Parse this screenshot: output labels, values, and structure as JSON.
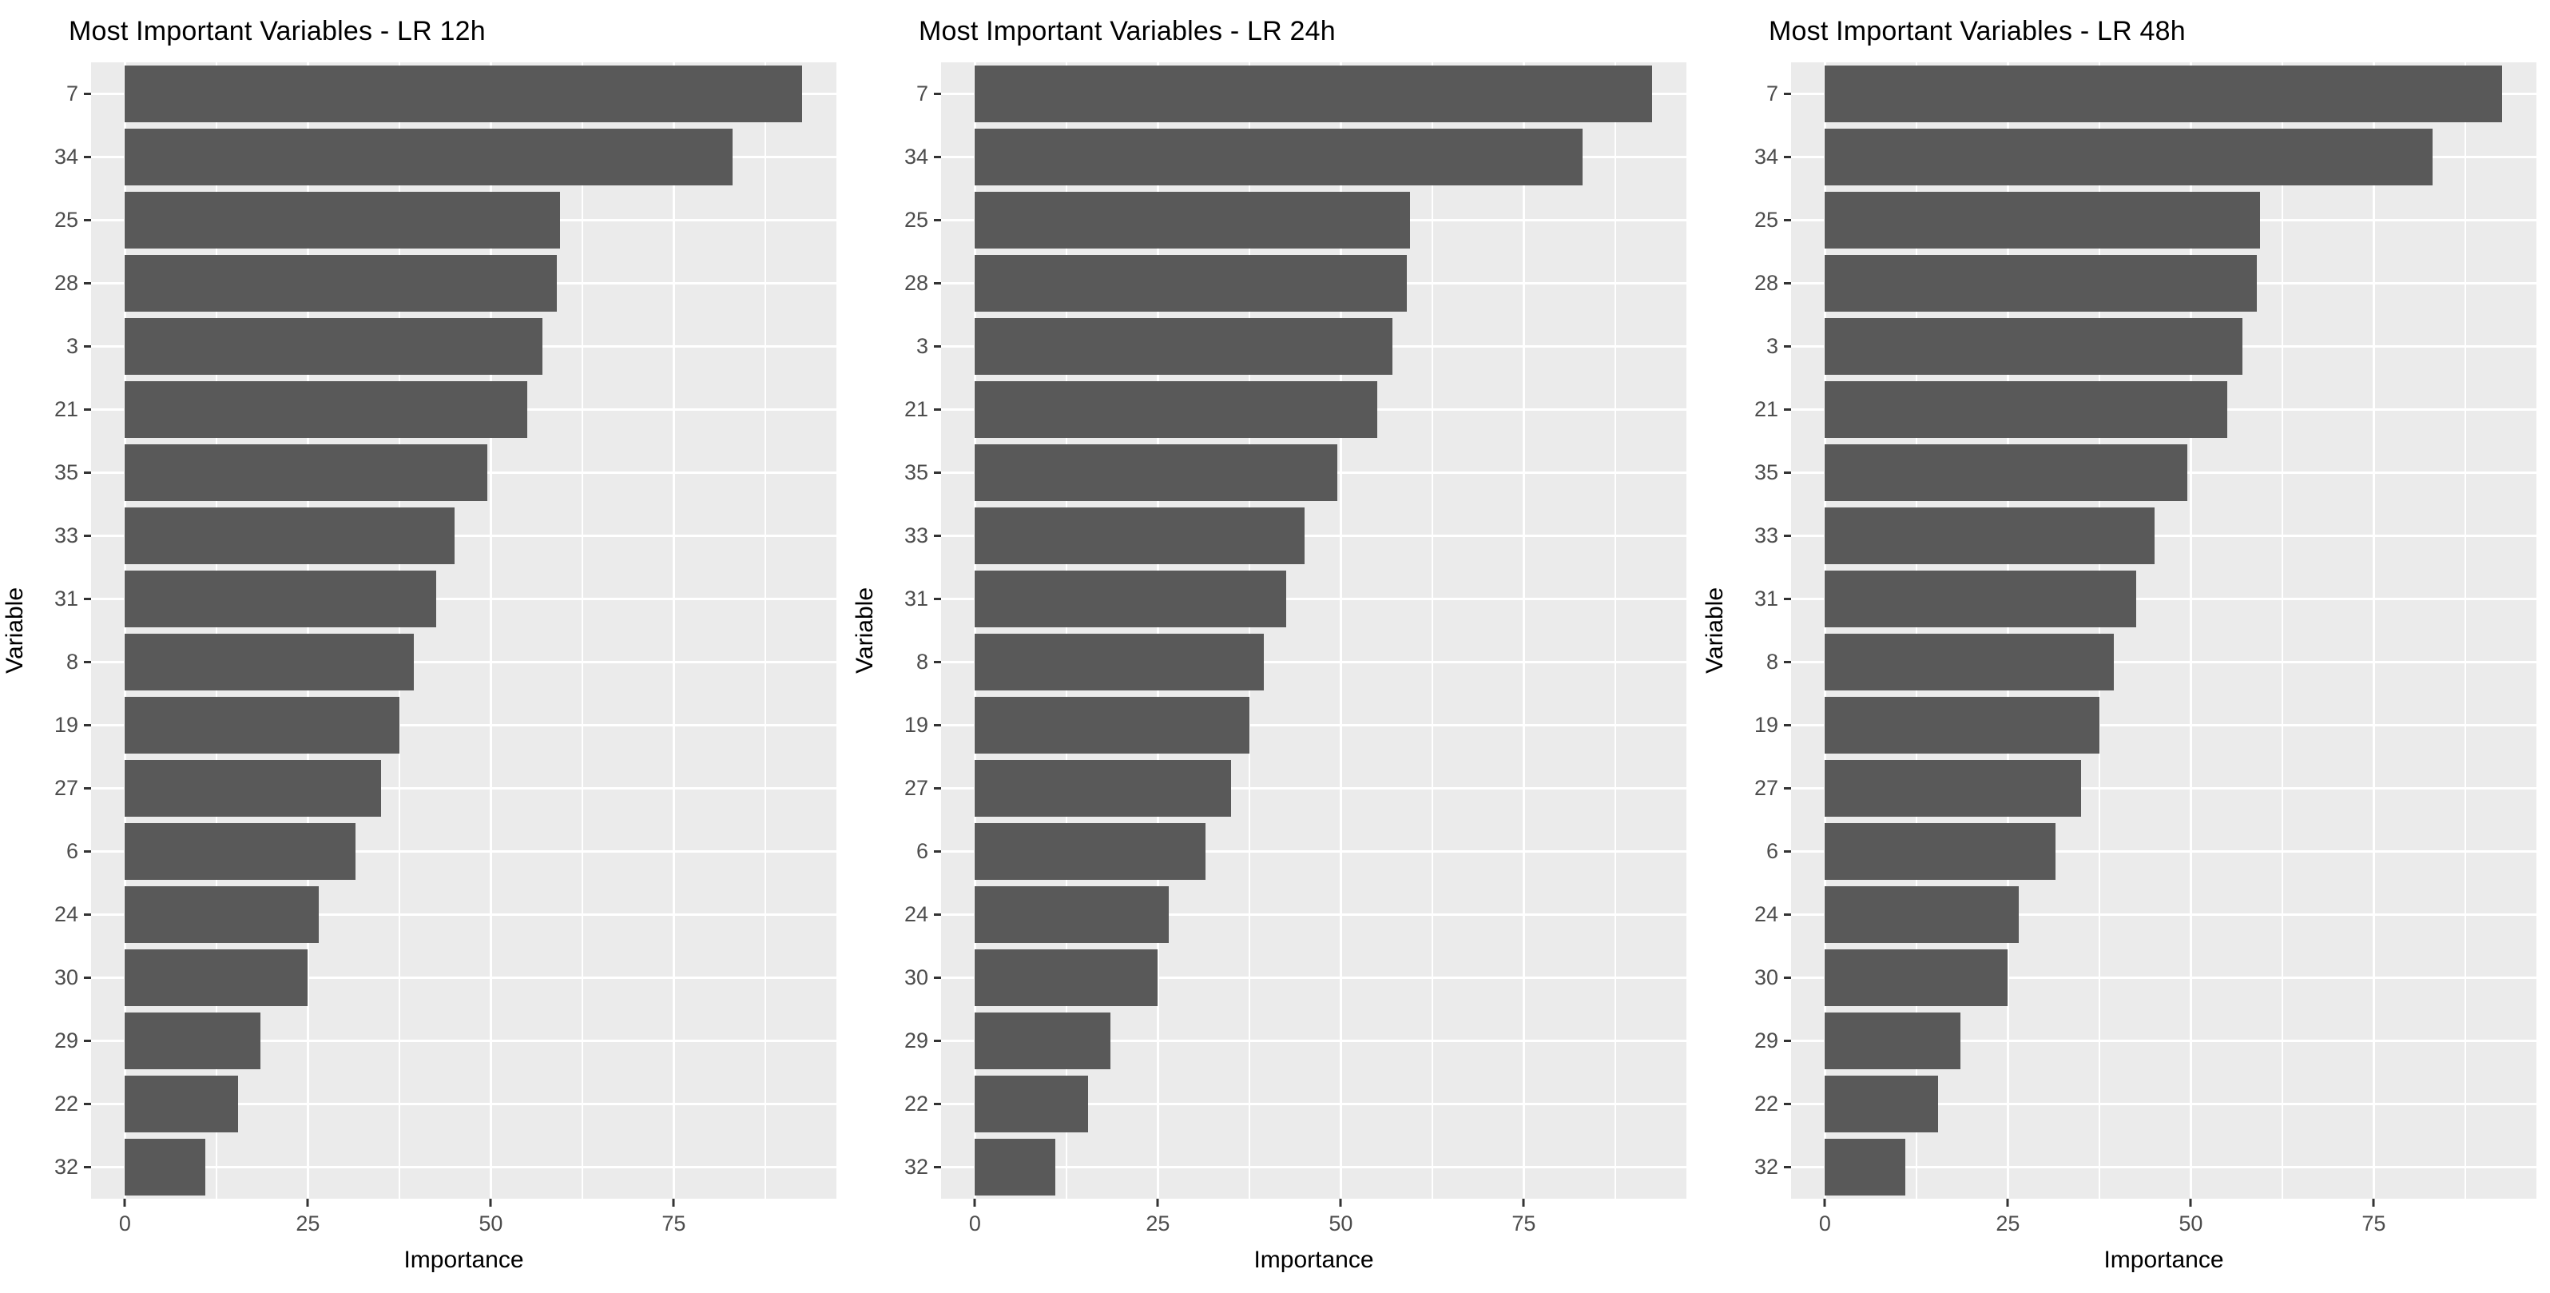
{
  "styles": {
    "background": "#FFFFFF",
    "panel_bg": "#EBEBEB",
    "grid_color": "#FFFFFF",
    "bar_color": "#595959",
    "axis_text_color": "#4D4D4D",
    "tick_color": "#333333",
    "title_color": "#000000"
  },
  "chart_data": [
    {
      "type": "bar",
      "orientation": "horizontal",
      "title": "Most Important Variables - LR 12h",
      "xlabel": "Importance",
      "ylabel": "Variable",
      "categories": [
        "7",
        "34",
        "25",
        "28",
        "3",
        "21",
        "35",
        "33",
        "31",
        "8",
        "19",
        "27",
        "6",
        "24",
        "30",
        "29",
        "22",
        "32"
      ],
      "values": [
        92.5,
        83,
        59.5,
        59,
        57,
        55,
        49.5,
        45,
        42.5,
        39.5,
        37.5,
        35,
        31.5,
        26.5,
        25,
        18.5,
        15.5,
        11
      ],
      "xticks": [
        0,
        25,
        50,
        75
      ],
      "xticks_minor": [
        12.5,
        37.5,
        62.5,
        87.5
      ],
      "x_range": [
        -4.63,
        97.23
      ],
      "grid": true,
      "legend": false
    },
    {
      "type": "bar",
      "orientation": "horizontal",
      "title": "Most Important Variables - LR 24h",
      "xlabel": "Importance",
      "ylabel": "Variable",
      "categories": [
        "7",
        "34",
        "25",
        "28",
        "3",
        "21",
        "35",
        "33",
        "31",
        "8",
        "19",
        "27",
        "6",
        "24",
        "30",
        "29",
        "22",
        "32"
      ],
      "values": [
        92.5,
        83,
        59.5,
        59,
        57,
        55,
        49.5,
        45,
        42.5,
        39.5,
        37.5,
        35,
        31.5,
        26.5,
        25,
        18.5,
        15.5,
        11
      ],
      "xticks": [
        0,
        25,
        50,
        75
      ],
      "xticks_minor": [
        12.5,
        37.5,
        62.5,
        87.5
      ],
      "x_range": [
        -4.63,
        97.23
      ],
      "grid": true,
      "legend": false
    },
    {
      "type": "bar",
      "orientation": "horizontal",
      "title": "Most Important Variables - LR 48h",
      "xlabel": "Importance",
      "ylabel": "Variable",
      "categories": [
        "7",
        "34",
        "25",
        "28",
        "3",
        "21",
        "35",
        "33",
        "31",
        "8",
        "19",
        "27",
        "6",
        "24",
        "30",
        "29",
        "22",
        "32"
      ],
      "values": [
        92.5,
        83,
        59.5,
        59,
        57,
        55,
        49.5,
        45,
        42.5,
        39.5,
        37.5,
        35,
        31.5,
        26.5,
        25,
        18.5,
        15.5,
        11
      ],
      "xticks": [
        0,
        25,
        50,
        75
      ],
      "xticks_minor": [
        12.5,
        37.5,
        62.5,
        87.5
      ],
      "x_range": [
        -4.63,
        97.23
      ],
      "grid": true,
      "legend": false
    }
  ]
}
